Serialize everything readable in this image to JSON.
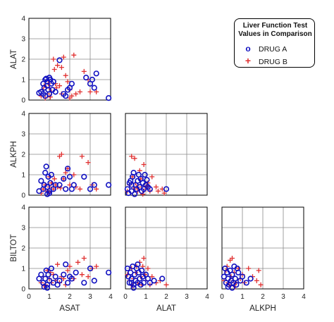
{
  "chart_data": {
    "type": "scatter",
    "legend": {
      "title_line1": "Liver Function Test",
      "title_line2": "Values in Comparison",
      "placement": "top-right"
    },
    "series": [
      {
        "name": "DRUG A",
        "color": "#1010c0",
        "marker": "circle"
      },
      {
        "name": "DRUG B",
        "color": "#e03030",
        "marker": "plus"
      }
    ],
    "axis_range": [
      0,
      4
    ],
    "ticks": [
      "0",
      "1",
      "2",
      "3",
      "4"
    ],
    "grid": true,
    "panels": [
      {
        "x": "ASAT",
        "y": "ALAT",
        "drug_a": [
          [
            0.5,
            0.35
          ],
          [
            0.6,
            0.4
          ],
          [
            0.7,
            0.3
          ],
          [
            0.75,
            0.6
          ],
          [
            0.8,
            1.0
          ],
          [
            0.85,
            1.05
          ],
          [
            0.9,
            0.7
          ],
          [
            0.9,
            0.9
          ],
          [
            0.95,
            0.5
          ],
          [
            1.0,
            0.3
          ],
          [
            1.05,
            1.0
          ],
          [
            1.1,
            0.8
          ],
          [
            1.15,
            0.5
          ],
          [
            1.2,
            0.9
          ],
          [
            1.0,
            1.1
          ],
          [
            0.8,
            0.2
          ],
          [
            1.5,
            1.95
          ],
          [
            1.7,
            0.3
          ],
          [
            1.8,
            0.2
          ],
          [
            1.9,
            0.5
          ],
          [
            2.0,
            0.6
          ],
          [
            2.1,
            0.8
          ],
          [
            2.8,
            1.1
          ],
          [
            3.0,
            0.8
          ],
          [
            3.1,
            1.0
          ],
          [
            3.3,
            1.3
          ],
          [
            3.2,
            0.6
          ],
          [
            3.9,
            0.1
          ],
          [
            1.3,
            0.4
          ],
          [
            0.7,
            0.8
          ]
        ],
        "drug_b": [
          [
            0.6,
            0.2
          ],
          [
            0.7,
            0.5
          ],
          [
            0.8,
            0.1
          ],
          [
            0.9,
            0.3
          ],
          [
            1.0,
            0.6
          ],
          [
            1.1,
            0.4
          ],
          [
            1.2,
            2.0
          ],
          [
            1.3,
            0.8
          ],
          [
            1.4,
            1.7
          ],
          [
            1.5,
            0.7
          ],
          [
            1.6,
            0.3
          ],
          [
            1.7,
            2.1
          ],
          [
            1.8,
            1.2
          ],
          [
            1.9,
            0.9
          ],
          [
            2.0,
            0.5
          ],
          [
            2.1,
            0.2
          ],
          [
            2.2,
            2.2
          ],
          [
            2.3,
            0.3
          ],
          [
            2.5,
            0.4
          ],
          [
            2.7,
            1.4
          ],
          [
            2.9,
            1.0
          ],
          [
            3.0,
            0.4
          ],
          [
            3.3,
            0.4
          ],
          [
            1.25,
            1.5
          ],
          [
            1.6,
            1.6
          ],
          [
            0.95,
            0.8
          ],
          [
            1.05,
            0.15
          ],
          [
            1.35,
            0.6
          ],
          [
            0.75,
            0.7
          ],
          [
            2.0,
            0.1
          ]
        ]
      },
      {
        "x": "ASAT",
        "y": "ALKPH",
        "drug_a": [
          [
            0.5,
            0.2
          ],
          [
            0.6,
            0.7
          ],
          [
            0.7,
            0.3
          ],
          [
            0.75,
            0.5
          ],
          [
            0.8,
            1.1
          ],
          [
            0.85,
            1.4
          ],
          [
            0.9,
            0.4
          ],
          [
            0.95,
            0.9
          ],
          [
            1.0,
            0.2
          ],
          [
            1.05,
            0.6
          ],
          [
            1.1,
            1.0
          ],
          [
            1.2,
            0.3
          ],
          [
            1.3,
            0.5
          ],
          [
            1.5,
            0.5
          ],
          [
            1.7,
            0.8
          ],
          [
            1.8,
            0.3
          ],
          [
            1.9,
            1.3
          ],
          [
            2.1,
            0.3
          ],
          [
            2.2,
            0.5
          ],
          [
            2.7,
            0.9
          ],
          [
            3.0,
            0.3
          ],
          [
            3.2,
            0.5
          ],
          [
            3.9,
            0.5
          ],
          [
            0.9,
            0.05
          ],
          [
            1.0,
            0.1
          ],
          [
            2.0,
            0.9
          ]
        ],
        "drug_b": [
          [
            0.6,
            0.1
          ],
          [
            0.7,
            0.3
          ],
          [
            0.8,
            0.5
          ],
          [
            0.9,
            0.2
          ],
          [
            1.0,
            0.4
          ],
          [
            1.1,
            0.6
          ],
          [
            1.2,
            0.3
          ],
          [
            1.3,
            0.5
          ],
          [
            1.4,
            0.4
          ],
          [
            1.5,
            1.9
          ],
          [
            1.6,
            2.0
          ],
          [
            1.7,
            0.8
          ],
          [
            1.8,
            1.1
          ],
          [
            1.9,
            1.3
          ],
          [
            2.0,
            0.5
          ],
          [
            2.2,
            1.0
          ],
          [
            2.5,
            0.3
          ],
          [
            2.6,
            1.9
          ],
          [
            2.9,
            1.6
          ],
          [
            3.1,
            0.5
          ],
          [
            3.3,
            0.3
          ],
          [
            1.0,
            0.9
          ],
          [
            0.95,
            0.15
          ],
          [
            1.25,
            0.8
          ],
          [
            2.3,
            0.4
          ],
          [
            1.55,
            0.35
          ]
        ]
      },
      {
        "x": "ALAT",
        "y": "ALKPH",
        "drug_a": [
          [
            0.1,
            0.3
          ],
          [
            0.2,
            0.6
          ],
          [
            0.3,
            0.2
          ],
          [
            0.35,
            0.9
          ],
          [
            0.4,
            1.1
          ],
          [
            0.5,
            0.5
          ],
          [
            0.55,
            0.3
          ],
          [
            0.6,
            0.7
          ],
          [
            0.7,
            0.4
          ],
          [
            0.75,
            0.8
          ],
          [
            0.8,
            0.2
          ],
          [
            0.85,
            0.6
          ],
          [
            0.9,
            0.3
          ],
          [
            0.95,
            1.0
          ],
          [
            1.0,
            0.5
          ],
          [
            1.1,
            0.4
          ],
          [
            1.2,
            0.3
          ],
          [
            0.3,
            0.5
          ],
          [
            0.15,
            0.1
          ],
          [
            0.45,
            0.05
          ],
          [
            0.65,
            1.0
          ],
          [
            2.0,
            0.3
          ],
          [
            0.25,
            0.7
          ],
          [
            1.05,
            0.75
          ]
        ],
        "drug_b": [
          [
            0.1,
            0.2
          ],
          [
            0.2,
            0.5
          ],
          [
            0.3,
            1.9
          ],
          [
            0.4,
            0.3
          ],
          [
            0.45,
            1.8
          ],
          [
            0.5,
            0.6
          ],
          [
            0.6,
            0.2
          ],
          [
            0.7,
            1.2
          ],
          [
            0.75,
            0.8
          ],
          [
            0.8,
            0.4
          ],
          [
            0.9,
            1.5
          ],
          [
            1.0,
            0.3
          ],
          [
            1.1,
            0.6
          ],
          [
            1.2,
            0.2
          ],
          [
            1.3,
            0.9
          ],
          [
            1.5,
            0.4
          ],
          [
            1.6,
            0.2
          ],
          [
            1.8,
            0.3
          ],
          [
            1.9,
            0.1
          ],
          [
            0.35,
            0.9
          ],
          [
            0.55,
            0.4
          ],
          [
            0.85,
            0.05
          ],
          [
            1.05,
            0.45
          ]
        ]
      },
      {
        "x": "ASAT",
        "y": "BILTOT",
        "drug_a": [
          [
            0.5,
            0.5
          ],
          [
            0.6,
            0.7
          ],
          [
            0.7,
            0.3
          ],
          [
            0.75,
            0.1
          ],
          [
            0.8,
            0.5
          ],
          [
            0.85,
            0.9
          ],
          [
            0.9,
            0.2
          ],
          [
            0.95,
            0.7
          ],
          [
            1.0,
            0.4
          ],
          [
            1.1,
            1.0
          ],
          [
            1.2,
            0.3
          ],
          [
            1.3,
            0.6
          ],
          [
            1.5,
            0.4
          ],
          [
            1.7,
            0.7
          ],
          [
            1.8,
            1.2
          ],
          [
            1.9,
            0.3
          ],
          [
            2.1,
            0.5
          ],
          [
            2.3,
            0.8
          ],
          [
            2.7,
            0.3
          ],
          [
            3.0,
            1.0
          ],
          [
            3.2,
            0.4
          ],
          [
            3.9,
            0.8
          ],
          [
            0.9,
            0.05
          ],
          [
            1.4,
            0.2
          ],
          [
            2.0,
            0.6
          ]
        ],
        "drug_b": [
          [
            0.6,
            0.3
          ],
          [
            0.7,
            0.6
          ],
          [
            0.8,
            0.2
          ],
          [
            0.9,
            0.9
          ],
          [
            1.0,
            0.5
          ],
          [
            1.1,
            0.3
          ],
          [
            1.2,
            0.7
          ],
          [
            1.3,
            0.4
          ],
          [
            1.4,
            1.2
          ],
          [
            1.5,
            0.3
          ],
          [
            1.6,
            0.6
          ],
          [
            1.7,
            0.5
          ],
          [
            1.8,
            0.2
          ],
          [
            1.9,
            0.9
          ],
          [
            2.0,
            1.1
          ],
          [
            2.2,
            0.5
          ],
          [
            2.4,
            1.3
          ],
          [
            2.6,
            0.7
          ],
          [
            2.7,
            1.5
          ],
          [
            2.9,
            0.6
          ],
          [
            3.1,
            1.0
          ],
          [
            3.3,
            1.1
          ],
          [
            1.05,
            0.8
          ],
          [
            0.75,
            0.15
          ]
        ]
      },
      {
        "x": "ALAT",
        "y": "BILTOT",
        "drug_a": [
          [
            0.1,
            1.0
          ],
          [
            0.15,
            0.6
          ],
          [
            0.2,
            0.3
          ],
          [
            0.25,
            0.8
          ],
          [
            0.3,
            0.5
          ],
          [
            0.35,
            1.1
          ],
          [
            0.4,
            0.2
          ],
          [
            0.45,
            0.7
          ],
          [
            0.5,
            0.4
          ],
          [
            0.55,
            1.0
          ],
          [
            0.6,
            0.3
          ],
          [
            0.65,
            0.8
          ],
          [
            0.7,
            0.5
          ],
          [
            0.75,
            0.2
          ],
          [
            0.8,
            0.9
          ],
          [
            0.85,
            0.6
          ],
          [
            0.9,
            0.3
          ],
          [
            1.0,
            0.7
          ],
          [
            1.1,
            0.5
          ],
          [
            1.2,
            0.3
          ],
          [
            1.4,
            0.4
          ],
          [
            1.8,
            0.5
          ],
          [
            0.4,
            0.05
          ],
          [
            0.6,
            1.2
          ],
          [
            0.3,
            0.3
          ]
        ],
        "drug_b": [
          [
            0.1,
            0.7
          ],
          [
            0.2,
            0.4
          ],
          [
            0.3,
            1.0
          ],
          [
            0.4,
            0.5
          ],
          [
            0.5,
            0.8
          ],
          [
            0.6,
            0.3
          ],
          [
            0.7,
            1.3
          ],
          [
            0.75,
            0.6
          ],
          [
            0.8,
            0.2
          ],
          [
            0.9,
            1.5
          ],
          [
            0.95,
            0.7
          ],
          [
            1.0,
            0.4
          ],
          [
            1.1,
            1.0
          ],
          [
            1.2,
            0.2
          ],
          [
            1.3,
            0.6
          ],
          [
            1.5,
            0.3
          ],
          [
            1.7,
            0.4
          ],
          [
            2.0,
            0.2
          ],
          [
            0.35,
            0.15
          ],
          [
            0.55,
            1.1
          ],
          [
            0.85,
            1.1
          ]
        ]
      },
      {
        "x": "ALKPH",
        "y": "BILTOT",
        "drug_a": [
          [
            0.1,
            0.6
          ],
          [
            0.15,
            1.0
          ],
          [
            0.2,
            0.3
          ],
          [
            0.25,
            0.8
          ],
          [
            0.3,
            0.5
          ],
          [
            0.35,
            0.2
          ],
          [
            0.4,
            0.9
          ],
          [
            0.45,
            0.4
          ],
          [
            0.5,
            0.7
          ],
          [
            0.55,
            0.3
          ],
          [
            0.6,
            1.1
          ],
          [
            0.65,
            0.5
          ],
          [
            0.7,
            0.2
          ],
          [
            0.8,
            0.8
          ],
          [
            0.9,
            0.4
          ],
          [
            1.0,
            0.6
          ],
          [
            1.2,
            0.3
          ],
          [
            1.4,
            0.5
          ],
          [
            0.3,
            0.1
          ],
          [
            0.5,
            0.05
          ],
          [
            0.75,
            1.0
          ]
        ],
        "drug_b": [
          [
            0.1,
            0.4
          ],
          [
            0.2,
            0.9
          ],
          [
            0.3,
            0.3
          ],
          [
            0.4,
            1.4
          ],
          [
            0.45,
            0.6
          ],
          [
            0.5,
            1.5
          ],
          [
            0.55,
            0.4
          ],
          [
            0.6,
            0.8
          ],
          [
            0.7,
            0.3
          ],
          [
            0.8,
            1.0
          ],
          [
            0.9,
            0.5
          ],
          [
            1.0,
            0.7
          ],
          [
            1.1,
            0.3
          ],
          [
            1.3,
            1.0
          ],
          [
            1.5,
            0.6
          ],
          [
            1.7,
            0.4
          ],
          [
            1.9,
            0.2
          ],
          [
            1.8,
            0.9
          ],
          [
            0.35,
            0.2
          ],
          [
            0.65,
            0.1
          ],
          [
            0.25,
            1.1
          ]
        ]
      }
    ]
  }
}
